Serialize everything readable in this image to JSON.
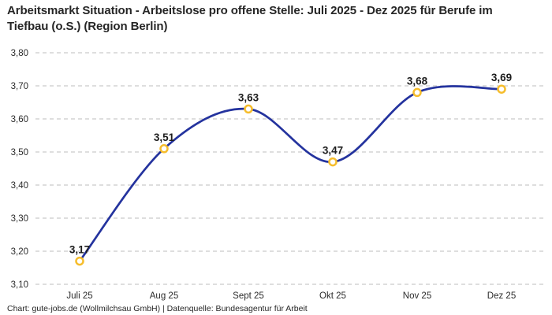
{
  "header": {
    "title": "Arbeitsmarkt Situation - Arbeitslose pro offene Stelle: Juli 2025 - Dez 2025 für Berufe im Tiefbau (o.S.) (Region Berlin)"
  },
  "footer": {
    "text": "Chart: gute-jobs.de (Wollmilchsau GmbH) | Datenquelle: Bundesagentur für Arbeit"
  },
  "chart_data": {
    "type": "line",
    "title": "Arbeitsmarkt Situation - Arbeitslose pro offene Stelle: Juli 2025 - Dez 2025 für Berufe im Tiefbau (o.S.) (Region Berlin)",
    "categories": [
      "Juli 25",
      "Aug 25",
      "Sept 25",
      "Okt 25",
      "Nov 25",
      "Dez 25"
    ],
    "values": [
      3.17,
      3.51,
      3.63,
      3.47,
      3.68,
      3.69
    ],
    "value_labels": [
      "3,17",
      "3,51",
      "3,63",
      "3,47",
      "3,68",
      "3,69"
    ],
    "xlabel": "",
    "ylabel": "",
    "ylim": [
      3.1,
      3.8
    ],
    "y_tick_values": [
      3.8,
      3.7,
      3.6,
      3.5,
      3.4,
      3.3,
      3.2,
      3.1
    ],
    "y_tick_labels": [
      "3,80",
      "3,70",
      "3,60",
      "3,50",
      "3,40",
      "3,30",
      "3,20",
      "3,10"
    ],
    "grid": "horizontal-dashed",
    "legend": "none",
    "smooth": true,
    "colors": {
      "line": "#24339E",
      "marker_ring": "#F6BD2C",
      "marker_fill": "#FFFFFF",
      "gridline": "#C9C9C9",
      "tick_text": "#2B2B2B",
      "value_text": "#1D1D1D",
      "title_text": "#262626",
      "background": "#FFFFFF"
    }
  }
}
